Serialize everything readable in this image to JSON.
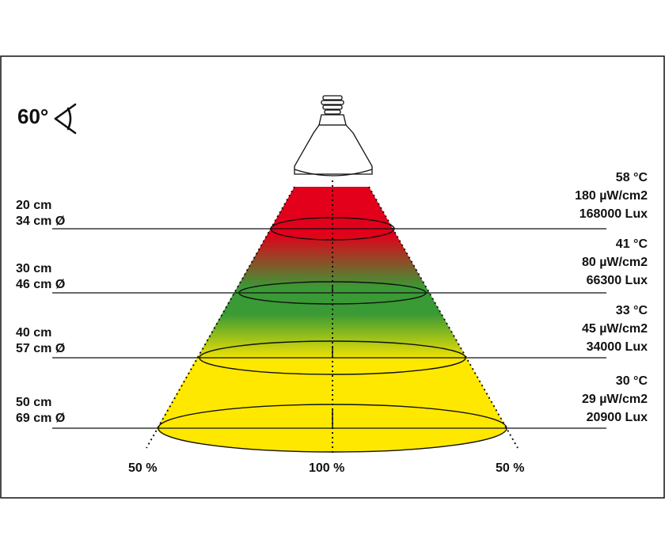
{
  "beam_angle": {
    "value": "60°",
    "icon": "beam-angle-icon"
  },
  "bands": [
    {
      "distance": "20 cm",
      "diameter": "34 cm Ø",
      "temperature": "58 °C",
      "uv": "180 µW/cm2",
      "lux": "168000 Lux"
    },
    {
      "distance": "30 cm",
      "diameter": "46 cm Ø",
      "temperature": "41 °C",
      "uv": "80 µW/cm2",
      "lux": "66300 Lux"
    },
    {
      "distance": "40 cm",
      "diameter": "57 cm Ø",
      "temperature": "33 °C",
      "uv": "45 µW/cm2",
      "lux": "34000 Lux"
    },
    {
      "distance": "50 cm",
      "diameter": "69 cm Ø",
      "temperature": "30 °C",
      "uv": "29 µW/cm2",
      "lux": "20900 Lux"
    }
  ],
  "intensity": {
    "left": "50 %",
    "center": "100 %",
    "right": "50 %"
  },
  "colors": {
    "hot": "#e2001a",
    "warm": "#3a9a35",
    "cool": "#ffe800",
    "line": "#111111"
  }
}
